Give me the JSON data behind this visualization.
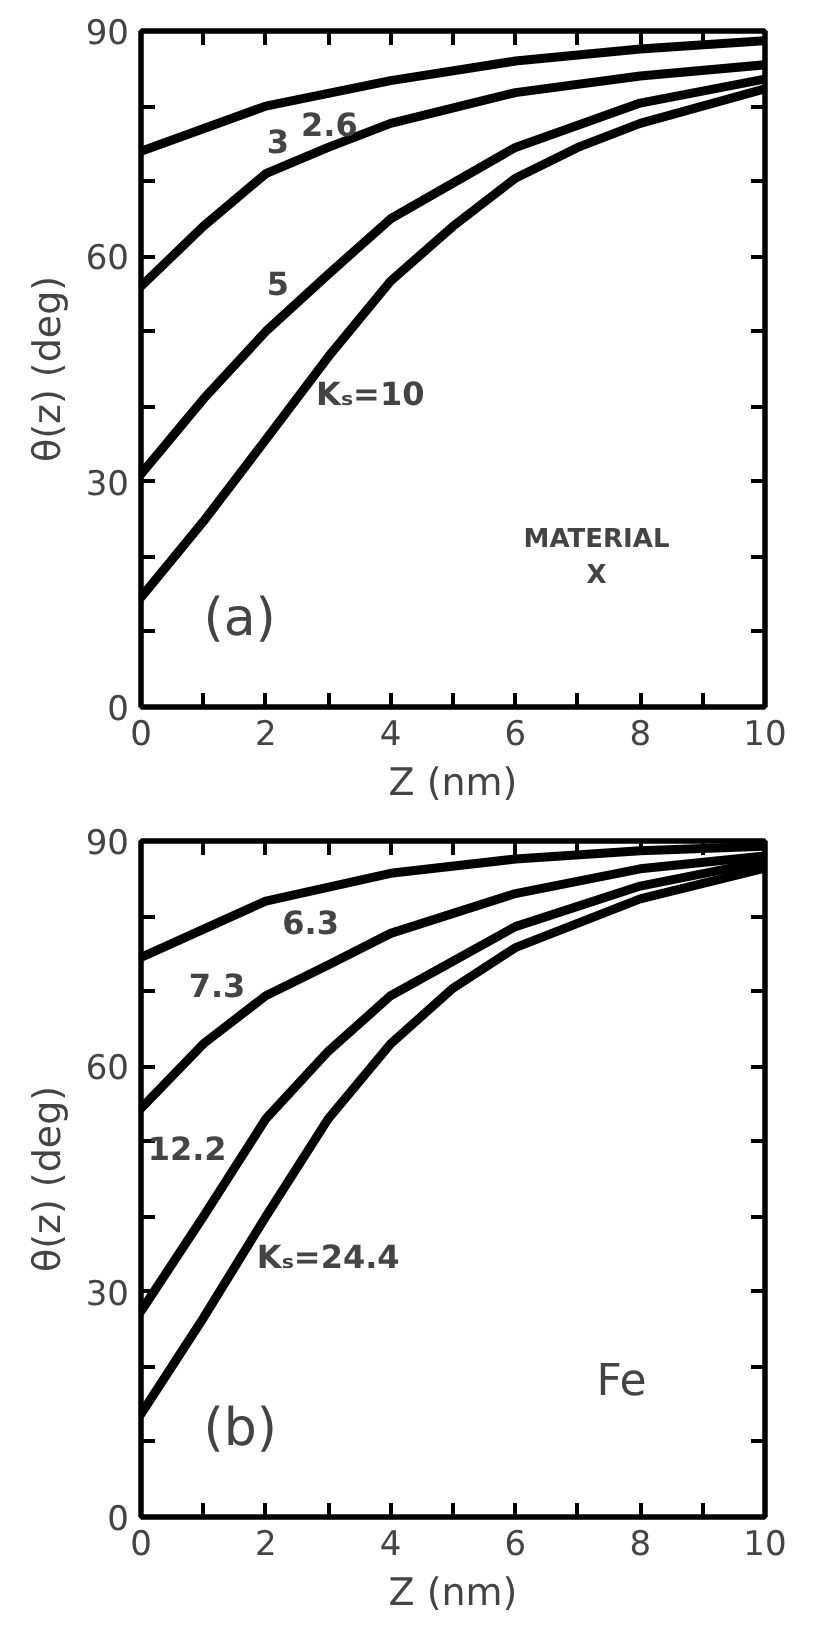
{
  "chart_data": [
    {
      "type": "line",
      "xlabel": "Z (nm)",
      "ylabel": "θ(z) (deg)",
      "xlim": [
        0,
        10
      ],
      "ylim": [
        0,
        90
      ],
      "xticks": [
        0,
        {
          "value": 1,
          "label": null
        },
        2,
        {
          "value": 3,
          "label": null
        },
        4,
        {
          "value": 5,
          "label": null
        },
        6,
        {
          "value": 7,
          "label": null
        },
        8,
        {
          "value": 9,
          "label": null
        },
        10
      ],
      "yticks": [
        0,
        {
          "value": 10,
          "label": null
        },
        {
          "value": 20,
          "label": null
        },
        30,
        {
          "value": 40,
          "label": null
        },
        {
          "value": 50,
          "label": null
        },
        60,
        {
          "value": 70,
          "label": null
        },
        {
          "value": 80,
          "label": null
        },
        90
      ],
      "grid": false,
      "legend": false,
      "marker": "none",
      "line_style": "solid",
      "annotations": [
        "(a)",
        "MATERIAL\nX"
      ],
      "series": [
        {
          "name": "2.6",
          "color": "#000000",
          "x": [
            0,
            2,
            4,
            6,
            8,
            10
          ],
          "values": [
            74,
            80,
            83.4,
            86,
            87.6,
            88.7
          ]
        },
        {
          "name": "3",
          "color": "#000000",
          "x": [
            0,
            1,
            2,
            3,
            4,
            6,
            8,
            10
          ],
          "values": [
            56,
            64,
            71,
            74.5,
            77.7,
            81.8,
            84,
            85.5
          ]
        },
        {
          "name": "5",
          "color": "#000000",
          "x": [
            0,
            1,
            2,
            3,
            4,
            6,
            8,
            10
          ],
          "values": [
            31,
            41,
            50,
            57.6,
            65,
            74.5,
            80.4,
            83.6
          ]
        },
        {
          "name": "Kₛ=10",
          "color": "#000000",
          "x": [
            0,
            1,
            2,
            3,
            4,
            5,
            6,
            7,
            8,
            10
          ],
          "values": [
            14.6,
            24.7,
            35.6,
            46.6,
            56.7,
            64,
            70.4,
            74.5,
            77.7,
            82.3
          ]
        }
      ]
    },
    {
      "type": "line",
      "xlabel": "Z (nm)",
      "ylabel": "θ(z) (deg)",
      "xlim": [
        0,
        10
      ],
      "ylim": [
        0,
        90
      ],
      "xticks": [
        0,
        {
          "value": 1,
          "label": null
        },
        2,
        {
          "value": 3,
          "label": null
        },
        4,
        {
          "value": 5,
          "label": null
        },
        6,
        {
          "value": 7,
          "label": null
        },
        8,
        {
          "value": 9,
          "label": null
        },
        10
      ],
      "yticks": [
        0,
        {
          "value": 10,
          "label": null
        },
        {
          "value": 20,
          "label": null
        },
        30,
        {
          "value": 40,
          "label": null
        },
        {
          "value": 50,
          "label": null
        },
        60,
        {
          "value": 70,
          "label": null
        },
        {
          "value": 80,
          "label": null
        },
        90
      ],
      "grid": false,
      "legend": false,
      "marker": "none",
      "line_style": "solid",
      "annotations": [
        "(b)",
        "Fe"
      ],
      "series": [
        {
          "name": "6.3",
          "color": "#000000",
          "x": [
            0,
            2,
            4,
            6,
            8,
            10
          ],
          "values": [
            74.5,
            82,
            85.7,
            87.6,
            88.7,
            89.3
          ]
        },
        {
          "name": "7.3",
          "color": "#000000",
          "x": [
            0,
            1,
            2,
            3,
            4,
            6,
            8,
            10
          ],
          "values": [
            54.4,
            63,
            69.4,
            73.5,
            77.7,
            83,
            86.3,
            88
          ]
        },
        {
          "name": "12.2",
          "color": "#000000",
          "x": [
            0,
            1,
            2,
            3,
            4,
            6,
            8,
            10
          ],
          "values": [
            27.4,
            40,
            53,
            62,
            69.4,
            78.6,
            84,
            87.3
          ]
        },
        {
          "name": "Kₛ=24.4",
          "color": "#000000",
          "x": [
            0,
            1,
            2,
            3,
            4,
            5,
            6,
            8,
            10
          ],
          "values": [
            13.7,
            26.5,
            40,
            53,
            63,
            70.4,
            75.8,
            82.3,
            86.4
          ]
        }
      ]
    }
  ]
}
